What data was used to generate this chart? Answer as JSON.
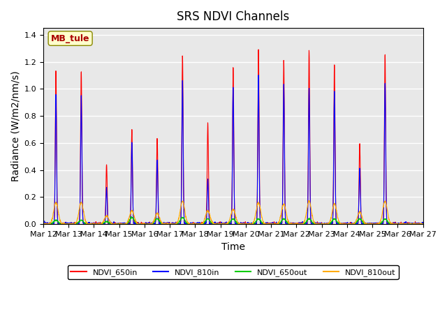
{
  "title": "SRS NDVI Channels",
  "xlabel": "Time",
  "ylabel": "Radiance (W/m2/nm/s)",
  "annotation": "MB_tule",
  "ylim": [
    0,
    1.45
  ],
  "legend_labels": [
    "NDVI_650in",
    "NDVI_810in",
    "NDVI_650out",
    "NDVI_810out"
  ],
  "legend_colors": [
    "#ff0000",
    "#0000ff",
    "#00cc00",
    "#ffaa00"
  ],
  "xtick_labels": [
    "Mar 12",
    "Mar 13",
    "Mar 14",
    "Mar 15",
    "Mar 16",
    "Mar 17",
    "Mar 18",
    "Mar 19",
    "Mar 20",
    "Mar 21",
    "Mar 22",
    "Mar 23",
    "Mar 24",
    "Mar 25",
    "Mar 26",
    "Mar 27"
  ],
  "background_color": "#e8e8e8",
  "grid_color": "#ffffff",
  "title_fontsize": 12,
  "axis_label_fontsize": 10,
  "tick_fontsize": 8,
  "day_peaks_650in": [
    1.14,
    1.13,
    0.44,
    0.7,
    0.63,
    1.25,
    0.75,
    1.16,
    1.29,
    1.21,
    1.29,
    1.18,
    0.6,
    1.25,
    0.0
  ],
  "day_peaks_810in": [
    0.96,
    0.95,
    0.27,
    0.6,
    0.47,
    1.07,
    0.33,
    1.01,
    1.1,
    1.03,
    1.0,
    0.99,
    0.41,
    1.05,
    0.0
  ],
  "day_peaks_650out": [
    0.03,
    0.03,
    0.02,
    0.05,
    0.04,
    0.05,
    0.04,
    0.04,
    0.04,
    0.04,
    0.04,
    0.04,
    0.04,
    0.04,
    0.0
  ],
  "day_peaks_810out": [
    0.16,
    0.16,
    0.06,
    0.1,
    0.08,
    0.17,
    0.1,
    0.11,
    0.16,
    0.15,
    0.17,
    0.15,
    0.09,
    0.17,
    0.0
  ]
}
